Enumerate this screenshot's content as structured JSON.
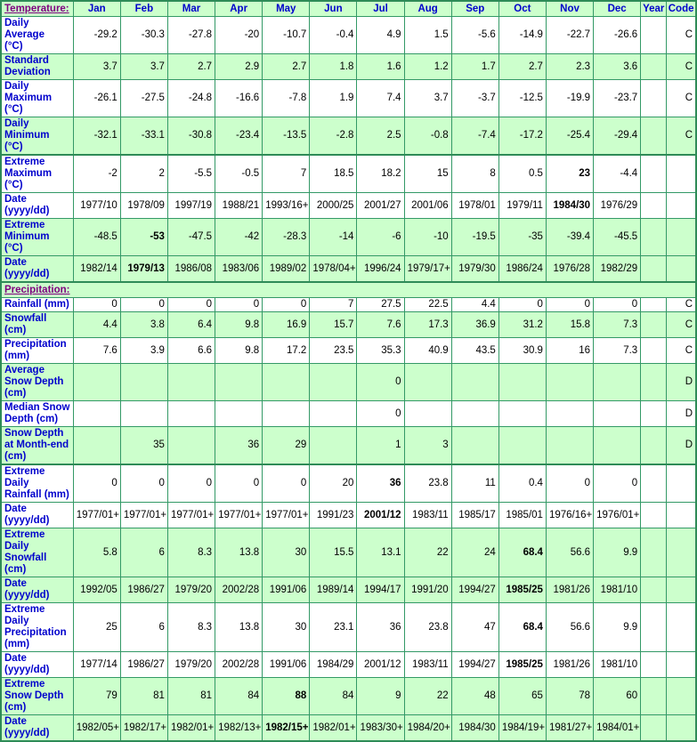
{
  "colors": {
    "row_green": "#ccffcc",
    "row_white": "#ffffff",
    "grid_border_green": "#339966",
    "group_divider_green": "#2e8b57",
    "header_label_blue": "#0000cc",
    "section_link_purple": "#800080",
    "value_black": "#000000"
  },
  "table": {
    "header": {
      "section_label": "Temperature:",
      "columns": [
        "Jan",
        "Feb",
        "Mar",
        "Apr",
        "May",
        "Jun",
        "Jul",
        "Aug",
        "Sep",
        "Oct",
        "Nov",
        "Dec",
        "Year",
        "Code"
      ]
    },
    "rows": [
      {
        "label": "Daily Average\n(°C)",
        "shade": "white",
        "values": [
          "-29.2",
          "-30.3",
          "-27.8",
          "-20",
          "-10.7",
          "-0.4",
          "4.9",
          "1.5",
          "-5.6",
          "-14.9",
          "-22.7",
          "-26.6",
          "",
          "C"
        ],
        "bold": []
      },
      {
        "label": "Standard\nDeviation",
        "shade": "green",
        "values": [
          "3.7",
          "3.7",
          "2.7",
          "2.9",
          "2.7",
          "1.8",
          "1.6",
          "1.2",
          "1.7",
          "2.7",
          "2.3",
          "3.6",
          "",
          "C"
        ],
        "bold": []
      },
      {
        "label": "Daily\nMaximum\n(°C)",
        "shade": "white",
        "values": [
          "-26.1",
          "-27.5",
          "-24.8",
          "-16.6",
          "-7.8",
          "1.9",
          "7.4",
          "3.7",
          "-3.7",
          "-12.5",
          "-19.9",
          "-23.7",
          "",
          "C"
        ],
        "bold": []
      },
      {
        "label": "Daily\nMinimum\n(°C)",
        "shade": "green",
        "values": [
          "-32.1",
          "-33.1",
          "-30.8",
          "-23.4",
          "-13.5",
          "-2.8",
          "2.5",
          "-0.8",
          "-7.4",
          "-17.2",
          "-25.4",
          "-29.4",
          "",
          "C"
        ],
        "bold": []
      },
      {
        "label": "Extreme\nMaximum\n(°C)",
        "shade": "white",
        "divider": true,
        "values": [
          "-2",
          "2",
          "-5.5",
          "-0.5",
          "7",
          "18.5",
          "18.2",
          "15",
          "8",
          "0.5",
          "23",
          "-4.4",
          "",
          ""
        ],
        "bold": [
          10
        ]
      },
      {
        "label": "Date\n(yyyy/dd)",
        "shade": "white",
        "values": [
          "1977/10",
          "1978/09",
          "1997/19",
          "1988/21",
          "1993/16+",
          "2000/25",
          "2001/27",
          "2001/06",
          "1978/01",
          "1979/11",
          "1984/30",
          "1976/29",
          "",
          ""
        ],
        "bold": [
          10
        ]
      },
      {
        "label": "Extreme\nMinimum\n(°C)",
        "shade": "green",
        "values": [
          "-48.5",
          "-53",
          "-47.5",
          "-42",
          "-28.3",
          "-14",
          "-6",
          "-10",
          "-19.5",
          "-35",
          "-39.4",
          "-45.5",
          "",
          ""
        ],
        "bold": [
          1
        ]
      },
      {
        "label": "Date\n(yyyy/dd)",
        "shade": "green",
        "values": [
          "1982/14",
          "1979/13",
          "1986/08",
          "1983/06",
          "1989/02",
          "1978/04+",
          "1996/24",
          "1979/17+",
          "1979/30",
          "1986/24",
          "1976/28",
          "1982/29",
          "",
          ""
        ],
        "bold": [
          1
        ]
      },
      {
        "type": "section",
        "label": "Precipitation:",
        "shade": "green",
        "divider": true
      },
      {
        "label": "Rainfall (mm)",
        "shade": "white",
        "values": [
          "0",
          "0",
          "0",
          "0",
          "0",
          "7",
          "27.5",
          "22.5",
          "4.4",
          "0",
          "0",
          "0",
          "",
          "C"
        ],
        "bold": []
      },
      {
        "label": "Snowfall\n(cm)",
        "shade": "green",
        "values": [
          "4.4",
          "3.8",
          "6.4",
          "9.8",
          "16.9",
          "15.7",
          "7.6",
          "17.3",
          "36.9",
          "31.2",
          "15.8",
          "7.3",
          "",
          "C"
        ],
        "bold": []
      },
      {
        "label": "Precipitation\n(mm)",
        "shade": "white",
        "values": [
          "7.6",
          "3.9",
          "6.6",
          "9.8",
          "17.2",
          "23.5",
          "35.3",
          "40.9",
          "43.5",
          "30.9",
          "16",
          "7.3",
          "",
          "C"
        ],
        "bold": []
      },
      {
        "label": "Average\nSnow Depth\n(cm)",
        "shade": "green",
        "values": [
          "",
          "",
          "",
          "",
          "",
          "",
          "0",
          "",
          "",
          "",
          "",
          "",
          "",
          "D"
        ],
        "bold": []
      },
      {
        "label": "Median Snow\nDepth (cm)",
        "shade": "white",
        "values": [
          "",
          "",
          "",
          "",
          "",
          "",
          "0",
          "",
          "",
          "",
          "",
          "",
          "",
          "D"
        ],
        "bold": []
      },
      {
        "label": "Snow Depth\nat Month-end\n(cm)",
        "shade": "green",
        "values": [
          "",
          "35",
          "",
          "36",
          "29",
          "",
          "1",
          "3",
          "",
          "",
          "",
          "",
          "",
          "D"
        ],
        "bold": []
      },
      {
        "label": "Extreme Daily\nRainfall (mm)",
        "shade": "white",
        "divider": true,
        "values": [
          "0",
          "0",
          "0",
          "0",
          "0",
          "20",
          "36",
          "23.8",
          "11",
          "0.4",
          "0",
          "0",
          "",
          ""
        ],
        "bold": [
          6
        ]
      },
      {
        "label": "Date\n(yyyy/dd)",
        "shade": "white",
        "values": [
          "1977/01+",
          "1977/01+",
          "1977/01+",
          "1977/01+",
          "1977/01+",
          "1991/23",
          "2001/12",
          "1983/11",
          "1985/17",
          "1985/01",
          "1976/16+",
          "1976/01+",
          "",
          ""
        ],
        "bold": [
          6
        ]
      },
      {
        "label": "Extreme Daily\nSnowfall\n(cm)",
        "shade": "green",
        "values": [
          "5.8",
          "6",
          "8.3",
          "13.8",
          "30",
          "15.5",
          "13.1",
          "22",
          "24",
          "68.4",
          "56.6",
          "9.9",
          "",
          ""
        ],
        "bold": [
          9
        ]
      },
      {
        "label": "Date\n(yyyy/dd)",
        "shade": "green",
        "values": [
          "1992/05",
          "1986/27",
          "1979/20",
          "2002/28",
          "1991/06",
          "1989/14",
          "1994/17",
          "1991/20",
          "1994/27",
          "1985/25",
          "1981/26",
          "1981/10",
          "",
          ""
        ],
        "bold": [
          9
        ]
      },
      {
        "label": "Extreme Daily\nPrecipitation\n(mm)",
        "shade": "white",
        "values": [
          "25",
          "6",
          "8.3",
          "13.8",
          "30",
          "23.1",
          "36",
          "23.8",
          "47",
          "68.4",
          "56.6",
          "9.9",
          "",
          ""
        ],
        "bold": [
          9
        ]
      },
      {
        "label": "Date\n(yyyy/dd)",
        "shade": "white",
        "values": [
          "1977/14",
          "1986/27",
          "1979/20",
          "2002/28",
          "1991/06",
          "1984/29",
          "2001/12",
          "1983/11",
          "1994/27",
          "1985/25",
          "1981/26",
          "1981/10",
          "",
          ""
        ],
        "bold": [
          9
        ]
      },
      {
        "label": "Extreme\nSnow Depth\n(cm)",
        "shade": "green",
        "values": [
          "79",
          "81",
          "81",
          "84",
          "88",
          "84",
          "9",
          "22",
          "48",
          "65",
          "78",
          "60",
          "",
          ""
        ],
        "bold": [
          4
        ]
      },
      {
        "label": "Date\n(yyyy/dd)",
        "shade": "green",
        "values": [
          "1982/05+",
          "1982/17+",
          "1982/01+",
          "1982/13+",
          "1982/15+",
          "1982/01+",
          "1983/30+",
          "1984/20+",
          "1984/30",
          "1984/19+",
          "1981/27+",
          "1984/01+",
          "",
          ""
        ],
        "bold": [
          4
        ]
      }
    ]
  }
}
